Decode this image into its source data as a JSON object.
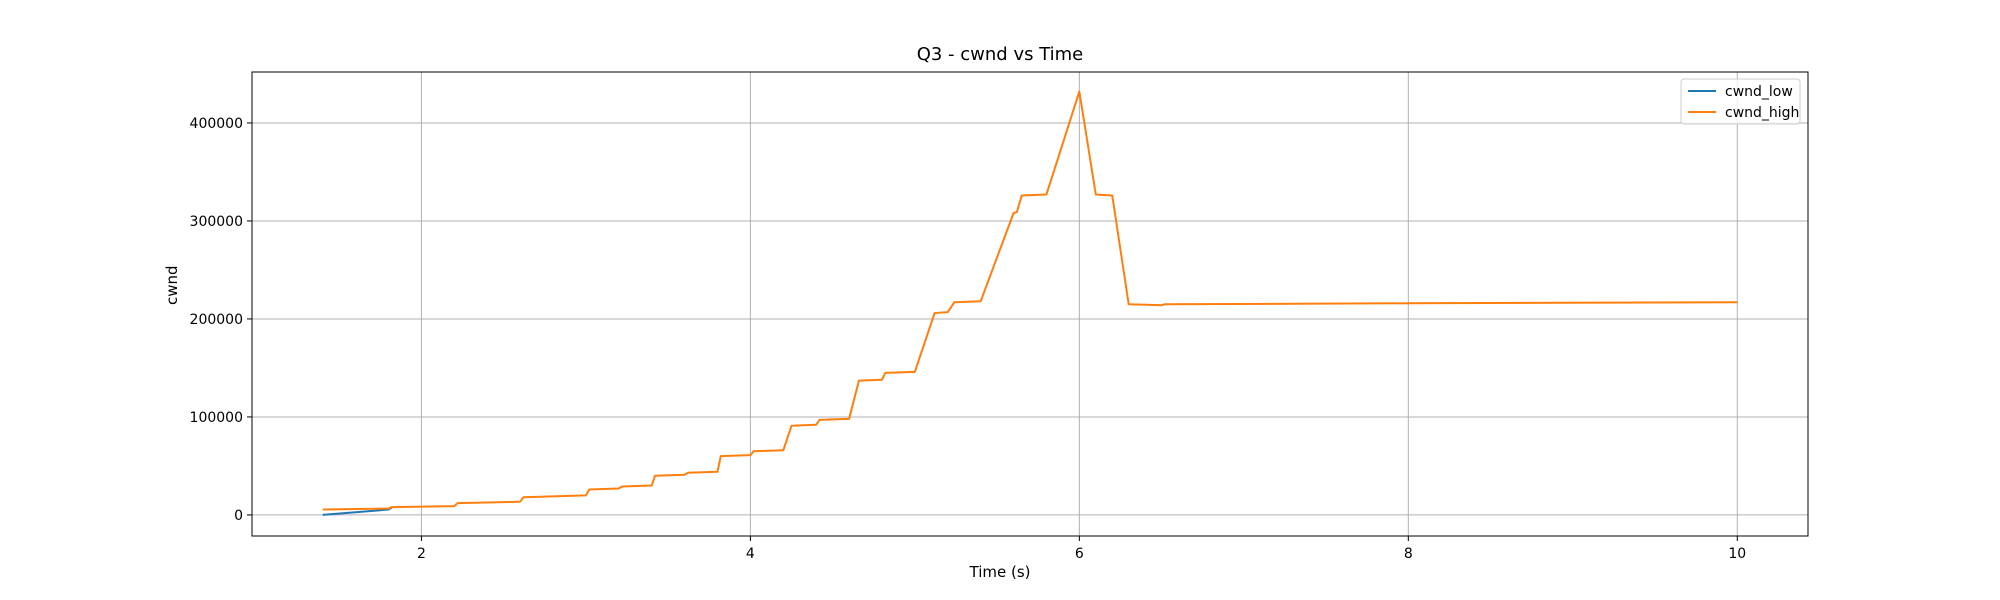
{
  "chart_data": {
    "type": "line",
    "title": "Q3 - cwnd vs Time",
    "xlabel": "Time (s)",
    "ylabel": "cwnd",
    "xlim": [
      0.97,
      10.43
    ],
    "ylim": [
      -21500,
      452000
    ],
    "xticks": [
      2,
      4,
      6,
      8,
      10
    ],
    "xtick_labels": [
      "2",
      "4",
      "6",
      "8",
      "10"
    ],
    "yticks": [
      0,
      100000,
      200000,
      300000,
      400000
    ],
    "ytick_labels": [
      "0",
      "100000",
      "200000",
      "300000",
      "400000"
    ],
    "grid": true,
    "legend_position": "top-right",
    "colors": {
      "cwnd_low": "#1f77b4",
      "cwnd_high": "#ff7f0e",
      "grid": "#b0b0b0"
    },
    "series": [
      {
        "name": "cwnd_low",
        "x": [
          1.4,
          1.8,
          1.82
        ],
        "y": [
          0,
          5500,
          7500
        ]
      },
      {
        "name": "cwnd_high",
        "x": [
          1.4,
          1.8,
          1.82,
          2.2,
          2.22,
          2.6,
          2.62,
          3.0,
          3.02,
          3.2,
          3.22,
          3.4,
          3.42,
          3.6,
          3.62,
          3.8,
          3.82,
          4.0,
          4.02,
          4.2,
          4.25,
          4.4,
          4.42,
          4.6,
          4.66,
          4.8,
          4.82,
          5.0,
          5.12,
          5.2,
          5.24,
          5.4,
          5.6,
          5.62,
          5.65,
          5.8,
          6.0,
          6.1,
          6.2,
          6.3,
          6.5,
          6.52,
          8.0,
          10.0
        ],
        "y": [
          5500,
          6500,
          8000,
          9000,
          12000,
          13500,
          18000,
          20000,
          26000,
          27000,
          29000,
          30000,
          40000,
          41000,
          43000,
          44000,
          60000,
          61000,
          65000,
          66000,
          91000,
          92000,
          97000,
          98000,
          137000,
          138000,
          145000,
          146000,
          206000,
          207000,
          217000,
          218000,
          308000,
          309000,
          326000,
          327000,
          432000,
          327000,
          326000,
          215000,
          214000,
          215000,
          216000,
          217000
        ]
      }
    ]
  }
}
